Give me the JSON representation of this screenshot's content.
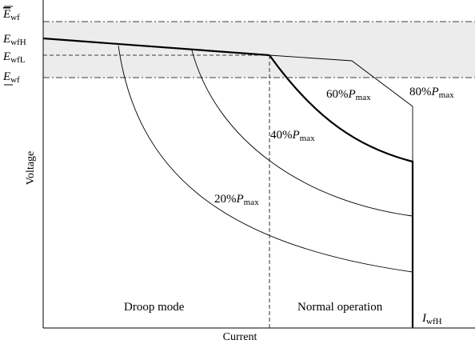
{
  "axes": {
    "y_label": "Voltage",
    "x_label": "Current"
  },
  "levels": {
    "upper": {
      "symbol": "E",
      "subscript": "wf"
    },
    "high": {
      "symbol": "E",
      "subscript": "wfH"
    },
    "low": {
      "symbol": "E",
      "subscript": "wfL"
    },
    "lower": {
      "symbol": "E",
      "subscript": "wf"
    }
  },
  "current_limit": {
    "symbol": "I",
    "subscript": "wfH"
  },
  "curves": [
    {
      "prefix": "20%",
      "symbol": "P",
      "subscript": "max"
    },
    {
      "prefix": "40%",
      "symbol": "P",
      "subscript": "max"
    },
    {
      "prefix": "60%",
      "symbol": "P",
      "subscript": "max"
    },
    {
      "prefix": "80%",
      "symbol": "P",
      "subscript": "max"
    }
  ],
  "regions": {
    "droop": "Droop mode",
    "normal": "Normal operation"
  }
}
